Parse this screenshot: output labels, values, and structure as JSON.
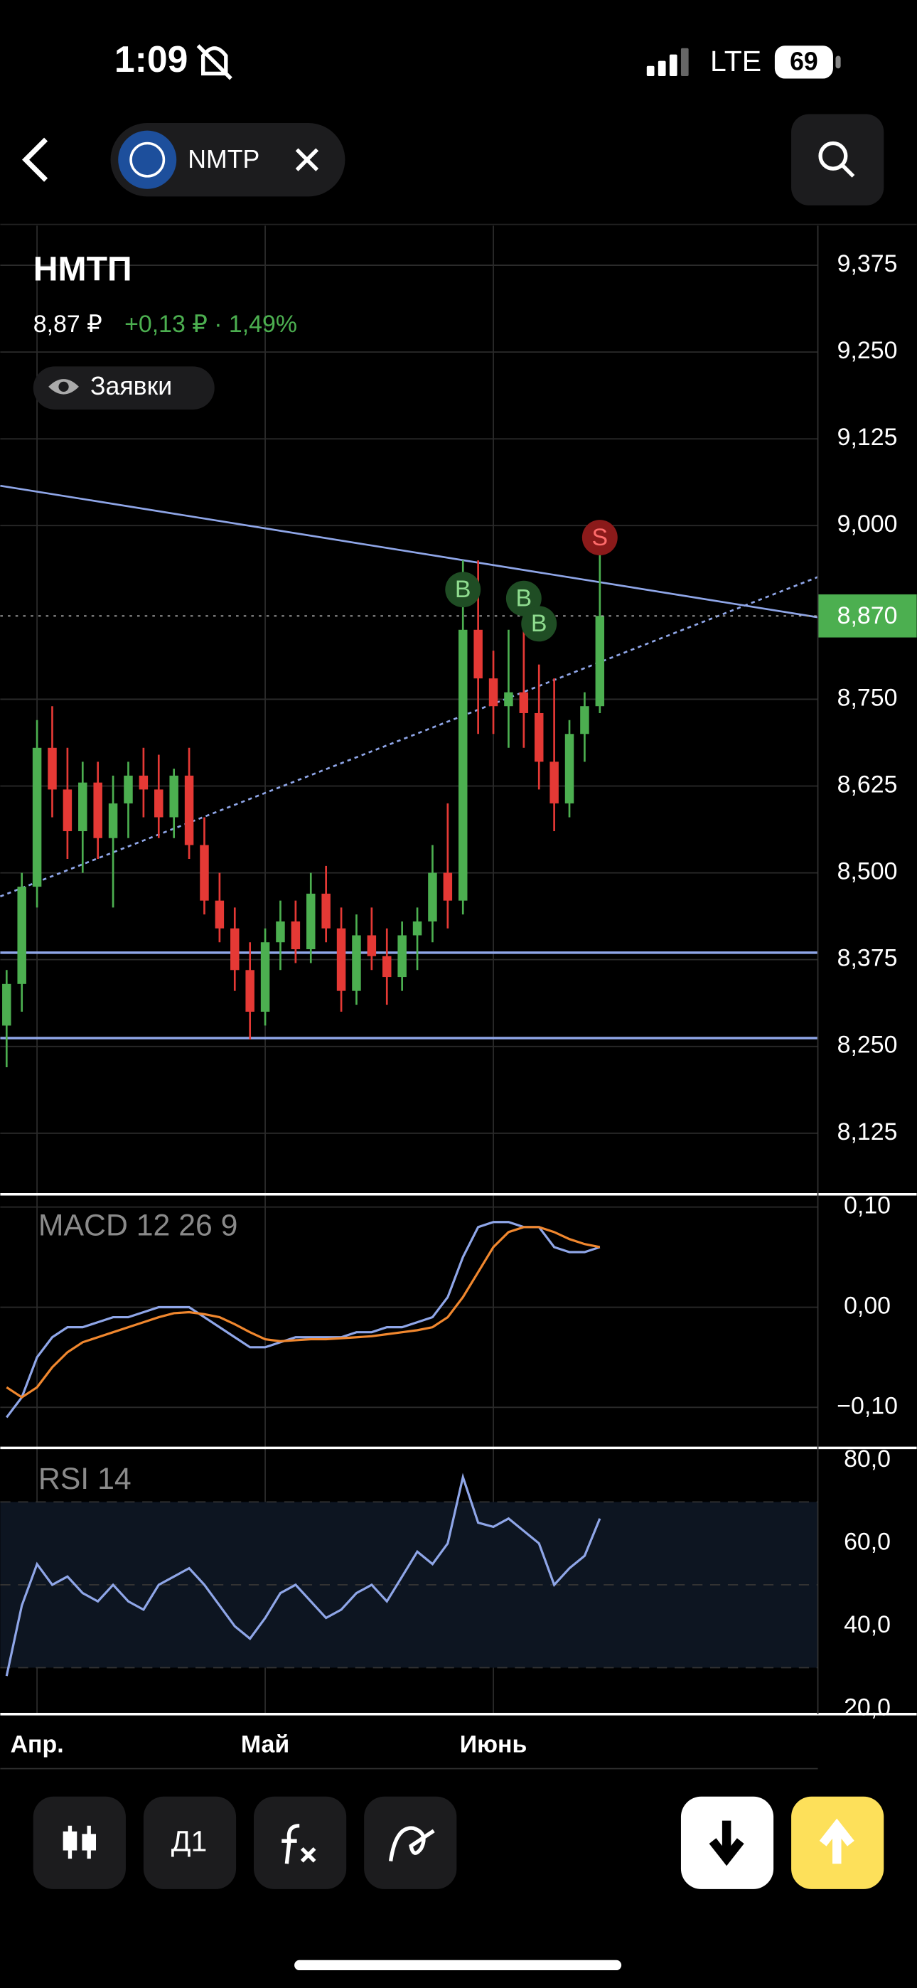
{
  "status_bar": {
    "time": "1:09",
    "network": "LTE",
    "battery": "69"
  },
  "header": {
    "ticker": "NMTP",
    "name": "НМТП",
    "price": "8,87 ₽",
    "change": "+0,13 ₽ · 1,49%",
    "orders_button": "Заявки"
  },
  "toolbar": {
    "interval": "Д1"
  },
  "chart_data": [
    {
      "type": "candlestick",
      "categories": [
        null,
        null,
        "Апр.",
        null,
        null,
        null,
        null,
        null,
        null,
        null,
        null,
        null,
        null,
        null,
        null,
        null,
        null,
        "Май",
        null,
        null,
        null,
        null,
        null,
        null,
        null,
        null,
        null,
        null,
        null,
        null,
        null,
        null,
        "Июнь",
        null,
        null,
        null,
        null,
        null,
        null,
        null
      ],
      "open": [
        8.28,
        8.34,
        8.48,
        8.68,
        8.62,
        8.56,
        8.63,
        8.55,
        8.6,
        8.64,
        8.62,
        8.58,
        8.64,
        8.54,
        8.46,
        8.42,
        8.36,
        8.3,
        8.4,
        8.43,
        8.39,
        8.47,
        8.42,
        8.33,
        8.41,
        8.38,
        8.35,
        8.41,
        8.43,
        8.5,
        8.46,
        8.85,
        8.78,
        8.74,
        8.76,
        8.73,
        8.66,
        8.6,
        8.7,
        8.74
      ],
      "high": [
        8.36,
        8.5,
        8.72,
        8.74,
        8.68,
        8.66,
        8.66,
        8.64,
        8.66,
        8.68,
        8.67,
        8.65,
        8.68,
        8.58,
        8.5,
        8.45,
        8.4,
        8.42,
        8.46,
        8.46,
        8.5,
        8.51,
        8.45,
        8.44,
        8.45,
        8.42,
        8.43,
        8.45,
        8.54,
        8.6,
        8.95,
        8.95,
        8.82,
        8.85,
        8.88,
        8.8,
        8.78,
        8.72,
        8.76,
        8.96
      ],
      "low": [
        8.22,
        8.3,
        8.45,
        8.58,
        8.52,
        8.5,
        8.52,
        8.45,
        8.55,
        8.58,
        8.55,
        8.55,
        8.52,
        8.44,
        8.4,
        8.33,
        8.26,
        8.28,
        8.36,
        8.37,
        8.37,
        8.4,
        8.3,
        8.31,
        8.36,
        8.31,
        8.33,
        8.36,
        8.4,
        8.42,
        8.44,
        8.7,
        8.7,
        8.68,
        8.68,
        8.62,
        8.56,
        8.58,
        8.66,
        8.73
      ],
      "close": [
        8.34,
        8.48,
        8.68,
        8.62,
        8.56,
        8.63,
        8.55,
        8.6,
        8.64,
        8.62,
        8.58,
        8.64,
        8.54,
        8.46,
        8.42,
        8.36,
        8.3,
        8.4,
        8.43,
        8.39,
        8.47,
        8.42,
        8.33,
        8.41,
        8.38,
        8.35,
        8.41,
        8.43,
        8.5,
        8.46,
        8.85,
        8.78,
        8.74,
        8.76,
        8.73,
        8.66,
        8.6,
        8.7,
        8.74,
        8.87
      ],
      "up_color": "#4caf50",
      "down_color": "#e53935",
      "ylim": [
        8.037,
        9.432
      ],
      "yticks": [
        {
          "value": 8.125,
          "label": "8,125"
        },
        {
          "value": 8.25,
          "label": "8,250"
        },
        {
          "value": 8.375,
          "label": "8,375"
        },
        {
          "value": 8.5,
          "label": "8,500"
        },
        {
          "value": 8.625,
          "label": "8,625"
        },
        {
          "value": 8.75,
          "label": "8,750"
        },
        {
          "value": 9,
          "label": "9,000"
        },
        {
          "value": 9.125,
          "label": "9,125"
        },
        {
          "value": 9.25,
          "label": "9,250"
        },
        {
          "value": 9.375,
          "label": "9,375"
        }
      ],
      "grid": true,
      "current_price": {
        "value": 8.87,
        "label": "8,870"
      },
      "trendlines": [
        {
          "values": [
            9.0575,
            8.868
          ],
          "color": "#8fa6e8",
          "dashed": false
        },
        {
          "values": [
            8.466,
            8.926
          ],
          "color": "#8fa6e8",
          "dashed": true
        }
      ],
      "levels": [
        {
          "value": 8.385,
          "color": "#8fa6e8"
        },
        {
          "value": 8.262,
          "color": "#8fa6e8"
        }
      ],
      "markers": [
        {
          "label": "B",
          "at": 30
        },
        {
          "label": "B",
          "at": 34
        },
        {
          "label": "B",
          "at": 35
        },
        {
          "label": "S",
          "at": 39
        }
      ]
    },
    {
      "type": "line",
      "title": "MACD 12 26 9",
      "series": [
        {
          "color": "#8fa6e8",
          "values": [
            -0.11,
            -0.09,
            -0.05,
            -0.03,
            -0.02,
            -0.02,
            -0.015,
            -0.01,
            -0.01,
            -0.005,
            0,
            0,
            0,
            -0.01,
            -0.02,
            -0.03,
            -0.04,
            -0.04,
            -0.035,
            -0.03,
            -0.03,
            -0.03,
            -0.03,
            -0.025,
            -0.025,
            -0.02,
            -0.02,
            -0.015,
            -0.01,
            0.01,
            0.05,
            0.08,
            0.085,
            0.085,
            0.08,
            0.08,
            0.06,
            0.055,
            0.055,
            0.06
          ]
        },
        {
          "color": "#f0872e",
          "values": [
            -0.08,
            -0.09,
            -0.08,
            -0.06,
            -0.045,
            -0.035,
            -0.03,
            -0.025,
            -0.02,
            -0.015,
            -0.01,
            -0.006,
            -0.005,
            -0.007,
            -0.01,
            -0.017,
            -0.025,
            -0.032,
            -0.034,
            -0.033,
            -0.032,
            -0.032,
            -0.031,
            -0.03,
            -0.029,
            -0.027,
            -0.025,
            -0.023,
            -0.02,
            -0.01,
            0.01,
            0.035,
            0.06,
            0.075,
            0.08,
            0.08,
            0.075,
            0.068,
            0.063,
            0.06
          ]
        }
      ],
      "ylim": [
        -0.1405,
        0.1127
      ],
      "yticks": [
        {
          "value": -0.1,
          "label": "−0,10"
        },
        {
          "value": 0,
          "label": "0,00"
        },
        {
          "value": 0.1,
          "label": "0,10"
        }
      ]
    },
    {
      "type": "line",
      "title": "RSI 14",
      "series": [
        {
          "color": "#8fa6e8",
          "values": [
            28,
            45,
            55,
            50,
            52,
            48,
            46,
            50,
            46,
            44,
            50,
            52,
            54,
            50,
            45,
            40,
            37,
            42,
            48,
            50,
            46,
            42,
            44,
            48,
            50,
            46,
            52,
            58,
            55,
            60,
            76,
            65,
            64,
            66,
            63,
            60,
            50,
            54,
            57,
            66
          ]
        }
      ],
      "band": [
        30,
        70
      ],
      "midline": 50,
      "ylim": [
        18.78,
        83.05
      ],
      "yticks": [
        {
          "value": 20,
          "label": "20,0"
        },
        {
          "value": 40,
          "label": "40,0"
        },
        {
          "value": 60,
          "label": "60,0"
        },
        {
          "value": 80,
          "label": "80,0"
        }
      ]
    }
  ]
}
